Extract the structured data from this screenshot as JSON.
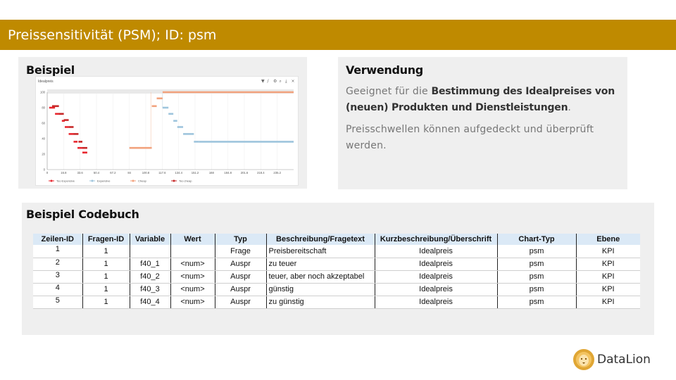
{
  "title": "Preissensitivität (PSM); ID: psm",
  "example": {
    "heading": "Beispiel"
  },
  "usage": {
    "heading": "Verwendung",
    "p1_pre": "Geeignet für die ",
    "p1_bold": "Bestimmung des Idealpreises von (neuen) Produkten und Dienstleistungen",
    "p1_post": ".",
    "p2": "Preisschwellen können aufgedeckt und überprüft werden."
  },
  "codebook": {
    "heading": "Beispiel Codebuch",
    "columns": [
      "Zeilen-ID",
      "Fragen-ID",
      "Variable",
      "Wert",
      "Typ",
      "Beschreibung/Fragetext",
      "Kurzbeschreibung/Überschrift",
      "Chart-Typ",
      "Ebene"
    ],
    "rows": [
      [
        "1",
        "1",
        "",
        "",
        "Frage",
        "Preisbereitschaft",
        "Idealpreis",
        "psm",
        "KPI"
      ],
      [
        "2",
        "1",
        "f40_1",
        "<num>",
        "Auspr",
        "zu teuer",
        "Idealpreis",
        "psm",
        "KPI"
      ],
      [
        "3",
        "1",
        "f40_2",
        "<num>",
        "Auspr",
        "teuer, aber noch akzeptabel",
        "Idealpreis",
        "psm",
        "KPI"
      ],
      [
        "4",
        "1",
        "f40_3",
        "<num>",
        "Auspr",
        "günstig",
        "Idealpreis",
        "psm",
        "KPI"
      ],
      [
        "5",
        "1",
        "f40_4",
        "<num>",
        "Auspr",
        "zu günstig",
        "Idealpreis",
        "psm",
        "KPI"
      ]
    ]
  },
  "logo": {
    "name": "DataLion",
    "icon": "lion-head-icon"
  },
  "toolbar_icons": [
    "filter-icon",
    "pencil-icon",
    "gear-icon",
    "zoom-icon",
    "download-icon",
    "close-icon"
  ],
  "colors": {
    "title_bar": "#bf8a00",
    "too_expensive": "#e8262e",
    "expensive": "#1f77b4",
    "cheap": "#ff7f0e",
    "too_cheap": "#d62728"
  },
  "chart_data": {
    "type": "line",
    "title": "Idealpreis",
    "ylim": [
      0,
      100
    ],
    "yticks": [
      "0",
      "20",
      "40",
      "60",
      "80",
      "100"
    ],
    "xticks": [
      "0",
      "16.8",
      "33.6",
      "50.4",
      "67.2",
      "84",
      "100.8",
      "117.6",
      "134.4",
      "151.2",
      "168",
      "184.8",
      "201.6",
      "218.4",
      "235.2"
    ],
    "xlim": [
      0,
      252
    ],
    "series": [
      {
        "name": "Too Expensive",
        "color": "#e8262e",
        "points": [
          [
            2,
            80
          ],
          [
            8,
            72
          ],
          [
            15,
            63
          ],
          [
            18,
            55
          ],
          [
            22,
            46
          ],
          [
            27,
            36
          ],
          [
            31,
            28
          ],
          [
            36,
            22
          ],
          [
            41,
            8
          ]
        ]
      },
      {
        "name": "Expensive",
        "color": "#9ec5dd",
        "points": [
          [
            118,
            80
          ],
          [
            124,
            72
          ],
          [
            129,
            63
          ],
          [
            133,
            55
          ],
          [
            139,
            46
          ],
          [
            150,
            36
          ],
          [
            155,
            36
          ],
          [
            252,
            36
          ]
        ]
      },
      {
        "name": "Cheap",
        "color": "#f2a27d",
        "points": [
          [
            84,
            28
          ],
          [
            106,
            28
          ],
          [
            107,
            82
          ],
          [
            112,
            92
          ],
          [
            118,
            100
          ],
          [
            252,
            100
          ]
        ]
      },
      {
        "name": "Too cheap",
        "color": "#c62828",
        "points": [
          [
            5,
            82
          ],
          [
            12,
            72
          ],
          [
            17,
            64
          ],
          [
            22,
            55
          ],
          [
            27,
            46
          ],
          [
            32,
            36
          ],
          [
            36,
            28
          ],
          [
            41,
            8
          ]
        ]
      }
    ],
    "legend": [
      "Too Expensive",
      "Expensive",
      "Cheap",
      "Too cheap"
    ],
    "legend_position": "bottom"
  }
}
